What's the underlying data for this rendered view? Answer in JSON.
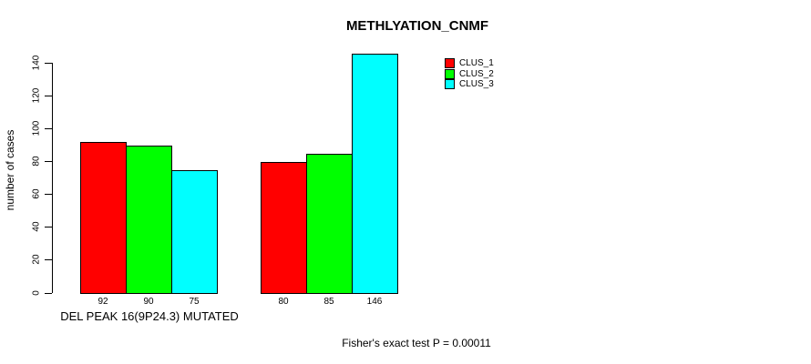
{
  "chart_data": {
    "type": "bar",
    "title": "METHLYATION_CNMF",
    "ylabel": "number of cases",
    "xlabel": "DEL PEAK 16(9P24.3) MUTATED",
    "footer": "Fisher's exact test P = 0.00011",
    "ylim": [
      0,
      140
    ],
    "yticks": [
      0,
      20,
      40,
      60,
      80,
      100,
      120,
      140
    ],
    "grid": "off",
    "legend_position": "top-right",
    "legend": [
      {
        "label": "CLUS_1",
        "color": "#ff0000"
      },
      {
        "label": "CLUS_2",
        "color": "#00ff00"
      },
      {
        "label": "CLUS_3",
        "color": "#00ffff"
      }
    ],
    "series": [
      {
        "name": "CLUS_1",
        "values": [
          92,
          80
        ]
      },
      {
        "name": "CLUS_2",
        "values": [
          90,
          85
        ]
      },
      {
        "name": "CLUS_3",
        "values": [
          75,
          146
        ]
      }
    ],
    "groups": [
      {
        "values": [
          92,
          90,
          75
        ],
        "bar_labels": [
          "92",
          "90",
          "75"
        ]
      },
      {
        "values": [
          80,
          85,
          146
        ],
        "bar_labels": [
          "80",
          "85",
          "146"
        ]
      }
    ],
    "axis_color": "#000000",
    "background_color": "#ffffff"
  }
}
